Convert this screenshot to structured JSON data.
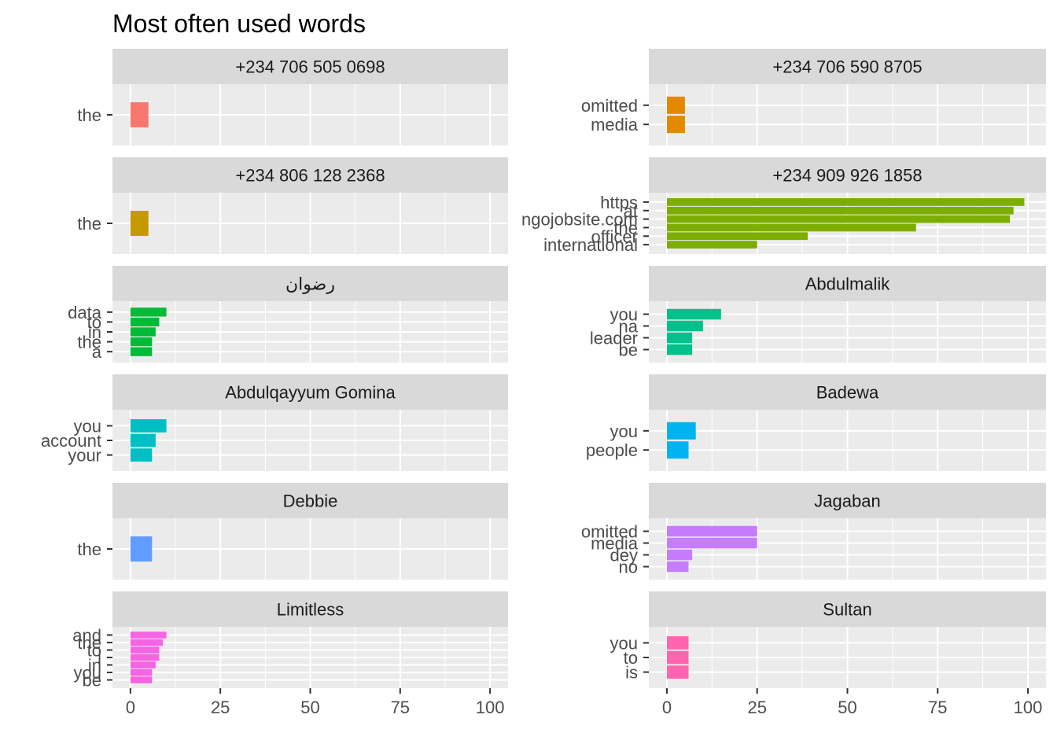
{
  "chart_data": {
    "type": "bar",
    "orientation": "horizontal",
    "title": "Most often used words",
    "xlim": [
      0,
      100
    ],
    "x_ticks": [
      0,
      25,
      50,
      75,
      100
    ],
    "layout": "facets in 2 columns",
    "panels": [
      {
        "name": "+234 706 505 0698",
        "color": "#F8766D",
        "words": [
          "the"
        ],
        "values": [
          5
        ]
      },
      {
        "name": "+234 706 590 8705",
        "color": "#E38900",
        "words": [
          "omitted",
          "media"
        ],
        "values": [
          5,
          5
        ]
      },
      {
        "name": "+234 806 128 2368",
        "color": "#C49A00",
        "words": [
          "the"
        ],
        "values": [
          5
        ]
      },
      {
        "name": "+234 909 926 1858",
        "color": "#7CAE00",
        "words": [
          "https",
          "at",
          "ngojobsite.com",
          "the",
          "officer",
          "international"
        ],
        "values": [
          99,
          96,
          95,
          69,
          39,
          25
        ]
      },
      {
        "name": "رضوان",
        "color": "#00BA38",
        "words": [
          "data",
          "to",
          "in",
          "the",
          "a"
        ],
        "values": [
          10,
          8,
          7,
          6,
          6
        ]
      },
      {
        "name": "Abdulmalik",
        "color": "#00C08B",
        "words": [
          "you",
          "na",
          "leader",
          "be"
        ],
        "values": [
          15,
          10,
          7,
          7
        ]
      },
      {
        "name": "Abdulqayyum Gomina",
        "color": "#00BFC4",
        "words": [
          "you",
          "account",
          "your"
        ],
        "values": [
          10,
          7,
          6
        ]
      },
      {
        "name": "Badewa",
        "color": "#00B4F0",
        "words": [
          "you",
          "people"
        ],
        "values": [
          8,
          6
        ]
      },
      {
        "name": "Debbie",
        "color": "#619CFF",
        "words": [
          "the"
        ],
        "values": [
          6
        ]
      },
      {
        "name": "Jagaban",
        "color": "#C77CFF",
        "words": [
          "omitted",
          "media",
          "dey",
          "no"
        ],
        "values": [
          25,
          25,
          7,
          6
        ]
      },
      {
        "name": "Limitless",
        "color": "#F564E3",
        "words": [
          "and",
          "the",
          "to",
          "i",
          "in",
          "you",
          "be"
        ],
        "values": [
          10,
          9,
          8,
          8,
          7,
          6,
          6
        ]
      },
      {
        "name": "Sultan",
        "color": "#FF64B0",
        "words": [
          "you",
          "to",
          "is"
        ],
        "values": [
          6,
          6,
          6
        ]
      }
    ]
  }
}
